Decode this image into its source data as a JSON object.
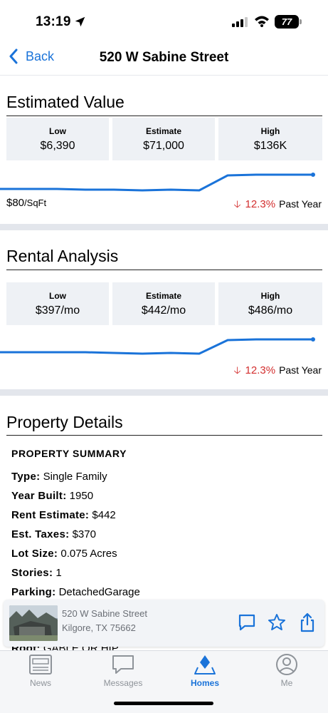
{
  "status_bar": {
    "time": "13:19",
    "battery": "77"
  },
  "nav": {
    "back_label": "Back",
    "title": "520 W Sabine Street"
  },
  "estimated_value": {
    "title": "Estimated Value",
    "low": {
      "label": "Low",
      "value": "$6,390"
    },
    "estimate": {
      "label": "Estimate",
      "value": "$71,000"
    },
    "high": {
      "label": "High",
      "value": "$136K"
    },
    "price_per_sqft": "$80",
    "sqft_unit": "/SqFt",
    "change_pct": "12.3%",
    "change_period": "Past Year",
    "change_direction": "down"
  },
  "rental_analysis": {
    "title": "Rental Analysis",
    "low": {
      "label": "Low",
      "value": "$397/mo"
    },
    "estimate": {
      "label": "Estimate",
      "value": "$442/mo"
    },
    "high": {
      "label": "High",
      "value": "$486/mo"
    },
    "change_pct": "12.3%",
    "change_period": "Past Year",
    "change_direction": "down"
  },
  "property_details": {
    "title": "Property Details",
    "summary_heading": "PROPERTY SUMMARY",
    "rows": [
      {
        "label": "Type:",
        "value": "Single Family"
      },
      {
        "label": "Year Built:",
        "value": "1950"
      },
      {
        "label": "Rent Estimate:",
        "value": "$442"
      },
      {
        "label": "Est. Taxes:",
        "value": "$370"
      },
      {
        "label": "Lot Size:",
        "value": "0.075 Acres"
      },
      {
        "label": "Stories:",
        "value": "1"
      },
      {
        "label": "Parking:",
        "value": "DetachedGarage"
      },
      {
        "label": "Roof:",
        "value": "GABLE OR HIP"
      }
    ]
  },
  "property_card": {
    "street": "520 W Sabine Street",
    "city_state_zip": "Kilgore, TX 75662"
  },
  "tab_bar": {
    "items": [
      {
        "label": "News",
        "icon": "newspaper-icon"
      },
      {
        "label": "Messages",
        "icon": "speech-bubble-icon"
      },
      {
        "label": "Homes",
        "icon": "map-pin-icon"
      },
      {
        "label": "Me",
        "icon": "person-circle-icon"
      }
    ],
    "active": "Homes"
  },
  "colors": {
    "accent": "#1a73d9",
    "negative": "#d32f2f",
    "box_bg": "#eef1f5",
    "divider": "#e3e6ec"
  }
}
